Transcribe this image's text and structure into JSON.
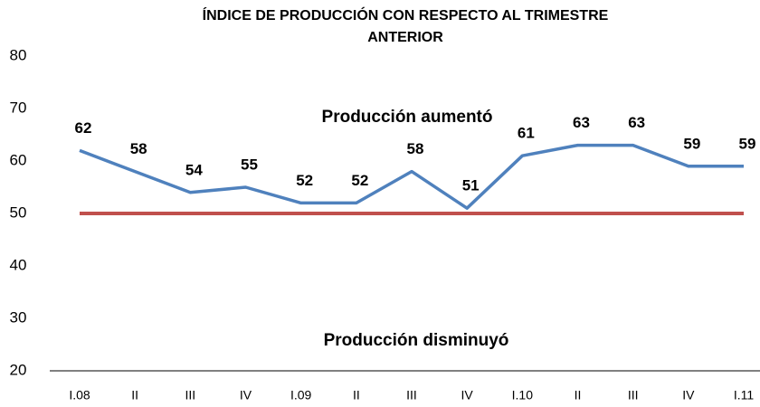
{
  "chart_data": {
    "type": "line",
    "title": [
      "ÍNDICE DE PRODUCCIÓN CON RESPECTO AL TRIMESTRE",
      "ANTERIOR"
    ],
    "categories": [
      "I.08",
      "II",
      "III",
      "IV",
      "I.09",
      "II",
      "III",
      "IV",
      "I.10",
      "II",
      "III",
      "IV",
      "I.11"
    ],
    "series": [
      {
        "color": "#4f81bd",
        "values": [
          62,
          58,
          54,
          55,
          52,
          52,
          58,
          51,
          61,
          63,
          63,
          59,
          59
        ]
      }
    ],
    "reference_line": {
      "value": 50,
      "color": "#c0504d"
    },
    "annotations": [
      "Producción aumentó",
      "Producción disminuyó"
    ],
    "ylim": [
      20,
      80
    ],
    "yticks": [
      20,
      30,
      40,
      50,
      60,
      70,
      80
    ],
    "grid": false
  }
}
